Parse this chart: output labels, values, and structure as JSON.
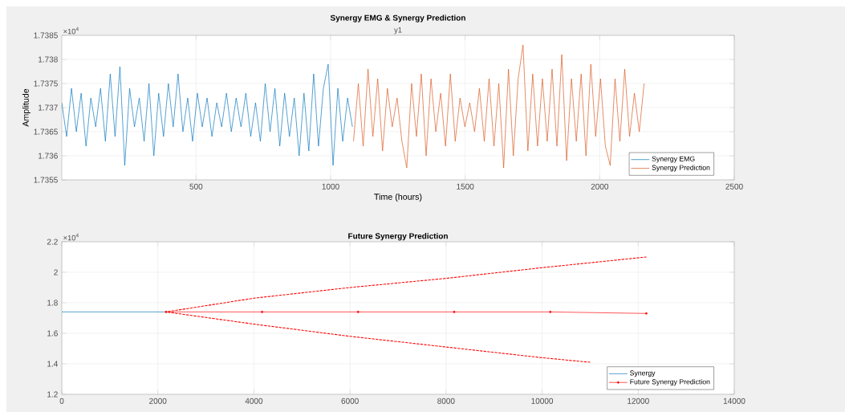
{
  "chart_data": [
    {
      "type": "line",
      "title": "Synergy EMG & Synergy Prediction",
      "subtitle": "y1",
      "xlabel": "Time (hours)",
      "ylabel": "Amplitude",
      "annotations": [
        "×10$^{4}$"
      ],
      "xlim": [
        1,
        2500
      ],
      "xticks": [
        500,
        1000,
        1500,
        2000,
        2500
      ],
      "ylim": [
        1.7355,
        1.7385
      ],
      "yticks": [
        1.7355,
        1.736,
        1.7365,
        1.737,
        1.7375,
        1.738,
        1.7385
      ],
      "grid": true,
      "legend": "bottom right",
      "series": [
        {
          "name": "Synergy EMG",
          "color": "#0072bd",
          "x": [
            1,
            19,
            37,
            55,
            73,
            91,
            109,
            127,
            145,
            163,
            181,
            199,
            217,
            235,
            253,
            271,
            289,
            307,
            325,
            343,
            361,
            379,
            397,
            415,
            433,
            451,
            469,
            487,
            505,
            523,
            541,
            559,
            577,
            595,
            613,
            631,
            649,
            667,
            685,
            703,
            721,
            739,
            757,
            775,
            793,
            811,
            829,
            847,
            865,
            883,
            901,
            919,
            937,
            955,
            973,
            991,
            1009,
            1027,
            1045,
            1063,
            1081
          ],
          "values": [
            1.7371,
            1.7364,
            1.7374,
            1.7365,
            1.7373,
            1.7362,
            1.7372,
            1.7366,
            1.7374,
            1.7363,
            1.7377,
            1.7364,
            1.73785,
            1.7358,
            1.7374,
            1.7366,
            1.7372,
            1.7363,
            1.7375,
            1.736,
            1.7373,
            1.7364,
            1.7375,
            1.7366,
            1.7377,
            1.7365,
            1.7372,
            1.7363,
            1.7373,
            1.7366,
            1.7372,
            1.7364,
            1.7371,
            1.7366,
            1.7373,
            1.7365,
            1.7372,
            1.7366,
            1.7373,
            1.7364,
            1.7371,
            1.7363,
            1.7375,
            1.7365,
            1.7374,
            1.7362,
            1.7373,
            1.7364,
            1.7372,
            1.736,
            1.7373,
            1.7361,
            1.7377,
            1.7362,
            1.7374,
            1.7379,
            1.7358,
            1.7374,
            1.7363,
            1.7372,
            1.7366
          ]
        },
        {
          "name": "Synergy Prediction",
          "color": "#d95319",
          "x": [
            1085,
            1103,
            1121,
            1139,
            1157,
            1175,
            1193,
            1211,
            1229,
            1247,
            1265,
            1283,
            1301,
            1319,
            1337,
            1355,
            1373,
            1391,
            1409,
            1427,
            1445,
            1463,
            1481,
            1499,
            1517,
            1535,
            1553,
            1571,
            1589,
            1607,
            1625,
            1643,
            1661,
            1679,
            1697,
            1715,
            1733,
            1751,
            1769,
            1787,
            1805,
            1823,
            1841,
            1859,
            1877,
            1895,
            1913,
            1931,
            1949,
            1967,
            1985,
            2003,
            2021,
            2039,
            2057,
            2075,
            2093,
            2111,
            2129,
            2147,
            2165
          ],
          "values": [
            1.7363,
            1.7375,
            1.7362,
            1.7378,
            1.7364,
            1.7376,
            1.7361,
            1.7374,
            1.7366,
            1.7372,
            1.7363,
            1.73575,
            1.7375,
            1.7364,
            1.7377,
            1.736,
            1.7376,
            1.7365,
            1.7373,
            1.7362,
            1.7377,
            1.7363,
            1.7372,
            1.7366,
            1.7371,
            1.7365,
            1.7374,
            1.7363,
            1.7376,
            1.7362,
            1.7375,
            1.73575,
            1.7378,
            1.736,
            1.7376,
            1.7383,
            1.7361,
            1.7377,
            1.7362,
            1.7376,
            1.7363,
            1.7378,
            1.7362,
            1.7381,
            1.7359,
            1.7376,
            1.7363,
            1.7377,
            1.736,
            1.7379,
            1.7364,
            1.7376,
            1.7362,
            1.7358,
            1.7376,
            1.7363,
            1.7378,
            1.7364,
            1.7373,
            1.7365,
            1.7375
          ]
        }
      ]
    },
    {
      "type": "line",
      "title": "Future Synergy Prediction",
      "annotations": [
        "×10$^{4}$"
      ],
      "xlim": [
        0,
        14000
      ],
      "xticks": [
        0,
        2000,
        4000,
        6000,
        8000,
        10000,
        12000,
        14000
      ],
      "ylim": [
        1.2,
        2.2
      ],
      "yticks": [
        1.2,
        1.4,
        1.6,
        1.8,
        2,
        2.2
      ],
      "grid": true,
      "legend": "bottom right",
      "series": [
        {
          "name": "Synergy",
          "color": "#0072bd",
          "x": [
            1,
            2170
          ],
          "values": [
            1.74,
            1.74
          ]
        },
        {
          "name": "Future Synergy Prediction",
          "color": "#ff0000",
          "marker": "circle",
          "x": [
            2170,
            4170,
            6170,
            8170,
            10170,
            12170
          ],
          "values": [
            1.74,
            1.74,
            1.74,
            1.74,
            1.74,
            1.73
          ]
        },
        {
          "color": "#ff0000",
          "line_style": "dashed",
          "x": [
            2170,
            4000,
            6000,
            8000,
            10000,
            12170
          ],
          "values": [
            1.74,
            1.83,
            1.9,
            1.96,
            2.03,
            2.1
          ]
        },
        {
          "color": "#ff0000",
          "line_style": "dashed",
          "x": [
            2170,
            4000,
            6000,
            8000,
            10000,
            11000
          ],
          "values": [
            1.74,
            1.66,
            1.58,
            1.51,
            1.44,
            1.41
          ]
        }
      ]
    }
  ]
}
